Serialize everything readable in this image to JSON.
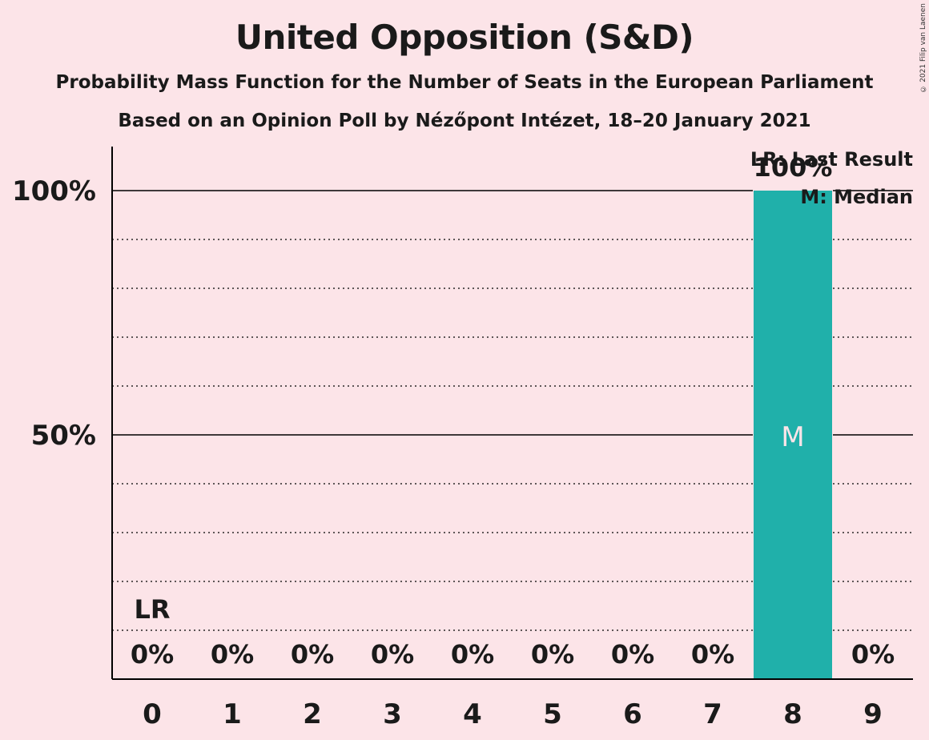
{
  "title": "United Opposition (S&D)",
  "subtitle1": "Probability Mass Function for the Number of Seats in the European Parliament",
  "subtitle2": "Based on an Opinion Poll by Nézőpont Intézet, 18–20 January 2021",
  "copyright": "© 2021 Filip van Laenen",
  "legend": {
    "last_result": "LR: Last Result",
    "median": "M: Median"
  },
  "colors": {
    "bar": "#20b0aa",
    "background": "#fce4e8",
    "axis": "#000000"
  },
  "chart_data": {
    "type": "bar",
    "title": "United Opposition (S&D)",
    "xlabel": "",
    "ylabel": "",
    "categories": [
      "0",
      "1",
      "2",
      "3",
      "4",
      "5",
      "6",
      "7",
      "8",
      "9"
    ],
    "values": [
      0,
      0,
      0,
      0,
      0,
      0,
      0,
      0,
      100,
      0
    ],
    "value_labels": [
      "0%",
      "0%",
      "0%",
      "0%",
      "0%",
      "0%",
      "0%",
      "0%",
      "100%",
      "0%"
    ],
    "ylim": [
      0,
      110
    ],
    "y_ticks": [
      50,
      100
    ],
    "y_tick_labels": [
      "50%",
      "100%"
    ],
    "minor_grid_step": 10,
    "last_result_seat": "0",
    "last_result_label": "LR",
    "median_seat": "8",
    "median_label": "M",
    "legend_position": "top-right"
  }
}
